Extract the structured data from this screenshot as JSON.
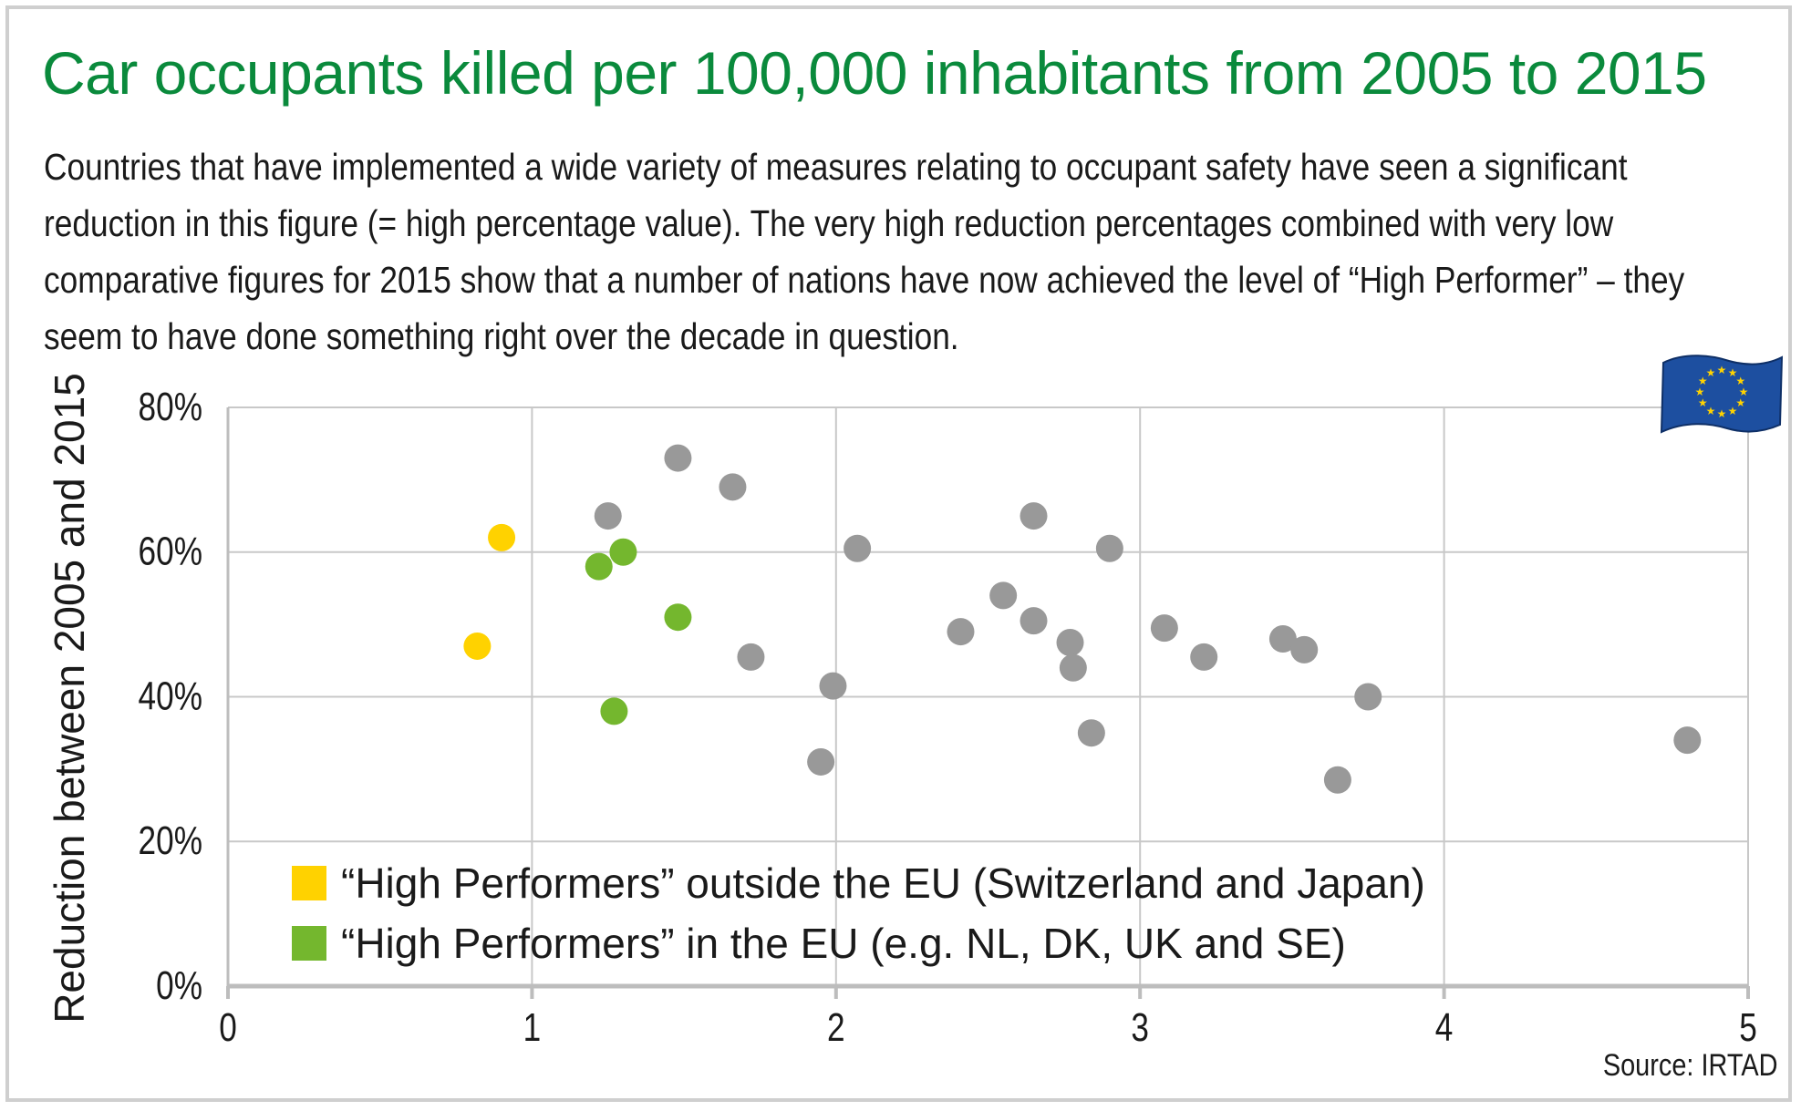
{
  "title": "Car occupants killed per 100,000 inhabitants from 2005 to 2015",
  "subtitle": "Countries that have implemented a wide variety of measures relating to occupant safety have seen a significant reduction in this figure (= high percentage value). The very high reduction percentages combined with very low comparative figures for 2015 show that a number of nations have now achieved the level of “High Performer” – they seem to have done something right over the decade in question.",
  "source": "Source: IRTAD",
  "colors": {
    "title": "#0a8a3c",
    "grid": "#c8c8c8",
    "axis": "#bdbdbd",
    "gray": "#999999",
    "yellow": "#ffd200",
    "green": "#74b72e"
  },
  "flag_icon": "eu-flag-icon",
  "chart_data": {
    "type": "scatter",
    "xlabel": "",
    "ylabel": "Reduction between 2005 and 2015",
    "xlim": [
      0,
      5
    ],
    "ylim": [
      0,
      80
    ],
    "x_ticks": [
      "0",
      "1",
      "2",
      "3",
      "4",
      "5"
    ],
    "y_ticks": [
      "0%",
      "20%",
      "40%",
      "60%",
      "80%"
    ],
    "grid": true,
    "legend_position": "bottom-left",
    "legend": [
      {
        "label": "“High Performers” outside the EU (Switzerland and Japan)",
        "color": "#ffd200"
      },
      {
        "label": "“High Performers” in the EU (e.g. NL, DK, UK and SE)",
        "color": "#74b72e"
      }
    ],
    "series": [
      {
        "name": "“High Performers” outside the EU (Switzerland and Japan)",
        "color": "#ffd200",
        "points": [
          [
            0.9,
            62
          ],
          [
            0.82,
            47
          ]
        ]
      },
      {
        "name": "“High Performers” in the EU (e.g. NL, DK, UK and SE)",
        "color": "#74b72e",
        "points": [
          [
            1.22,
            58
          ],
          [
            1.3,
            60
          ],
          [
            1.48,
            51
          ],
          [
            1.27,
            38
          ]
        ]
      },
      {
        "color": "#999999",
        "points": [
          [
            1.48,
            73
          ],
          [
            1.66,
            69
          ],
          [
            1.25,
            65
          ],
          [
            1.72,
            45.5
          ],
          [
            2.07,
            60.5
          ],
          [
            1.99,
            41.5
          ],
          [
            1.95,
            31
          ],
          [
            2.41,
            49
          ],
          [
            2.55,
            54
          ],
          [
            2.65,
            50.5
          ],
          [
            2.65,
            65
          ],
          [
            2.77,
            47.5
          ],
          [
            2.78,
            44
          ],
          [
            2.9,
            60.5
          ],
          [
            2.84,
            35
          ],
          [
            3.08,
            49.5
          ],
          [
            3.21,
            45.5
          ],
          [
            3.47,
            48
          ],
          [
            3.54,
            46.5
          ],
          [
            3.75,
            40
          ],
          [
            3.65,
            28.5
          ],
          [
            4.8,
            34
          ]
        ]
      }
    ]
  }
}
